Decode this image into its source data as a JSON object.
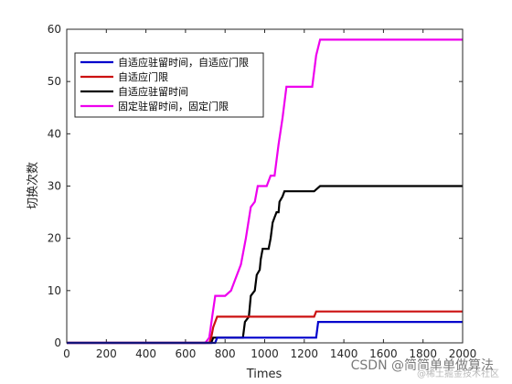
{
  "chart_data": {
    "type": "line",
    "xlabel": "Times",
    "ylabel": "切换次数",
    "xlim": [
      0,
      2000
    ],
    "ylim": [
      0,
      60
    ],
    "xticks": [
      0,
      200,
      400,
      600,
      800,
      1000,
      1200,
      1400,
      1600,
      1800,
      2000
    ],
    "yticks": [
      0,
      10,
      20,
      30,
      40,
      50,
      60
    ],
    "grid": false,
    "legend_position": "top-left",
    "series": [
      {
        "name": "自适应驻留时间，自适应门限",
        "color": "#0000cc",
        "points": [
          [
            0,
            0
          ],
          [
            750,
            0
          ],
          [
            760,
            1
          ],
          [
            1260,
            1
          ],
          [
            1270,
            4
          ],
          [
            2000,
            4
          ]
        ]
      },
      {
        "name": "自适应门限",
        "color": "#cc1111",
        "points": [
          [
            0,
            0
          ],
          [
            720,
            0
          ],
          [
            730,
            1
          ],
          [
            740,
            3
          ],
          [
            760,
            5
          ],
          [
            1250,
            5
          ],
          [
            1260,
            6
          ],
          [
            2000,
            6
          ]
        ]
      },
      {
        "name": "自适应驻留时间",
        "color": "#000000",
        "points": [
          [
            0,
            0
          ],
          [
            730,
            0
          ],
          [
            740,
            1
          ],
          [
            890,
            1
          ],
          [
            900,
            4
          ],
          [
            920,
            5
          ],
          [
            930,
            9
          ],
          [
            950,
            10
          ],
          [
            960,
            13
          ],
          [
            975,
            14
          ],
          [
            980,
            16
          ],
          [
            990,
            18
          ],
          [
            1020,
            18
          ],
          [
            1030,
            20
          ],
          [
            1040,
            23
          ],
          [
            1050,
            24
          ],
          [
            1060,
            25
          ],
          [
            1070,
            25
          ],
          [
            1075,
            27
          ],
          [
            1090,
            28
          ],
          [
            1100,
            29
          ],
          [
            1250,
            29
          ],
          [
            1280,
            30
          ],
          [
            2000,
            30
          ]
        ]
      },
      {
        "name": "固定驻留时间，固定门限",
        "color": "#ee00ee",
        "points": [
          [
            0,
            0
          ],
          [
            700,
            0
          ],
          [
            720,
            1
          ],
          [
            735,
            5
          ],
          [
            750,
            9
          ],
          [
            800,
            9
          ],
          [
            830,
            10
          ],
          [
            850,
            12
          ],
          [
            880,
            15
          ],
          [
            905,
            20
          ],
          [
            930,
            26
          ],
          [
            950,
            27
          ],
          [
            965,
            30
          ],
          [
            1010,
            30
          ],
          [
            1030,
            32
          ],
          [
            1050,
            32
          ],
          [
            1070,
            38
          ],
          [
            1090,
            43
          ],
          [
            1110,
            49
          ],
          [
            1160,
            49
          ],
          [
            1240,
            49
          ],
          [
            1260,
            55
          ],
          [
            1280,
            58
          ],
          [
            2000,
            58
          ]
        ]
      }
    ]
  },
  "watermark": {
    "text": "CSDN @简简单单做算法",
    "subtext": "@稀土掘金技术社区"
  }
}
